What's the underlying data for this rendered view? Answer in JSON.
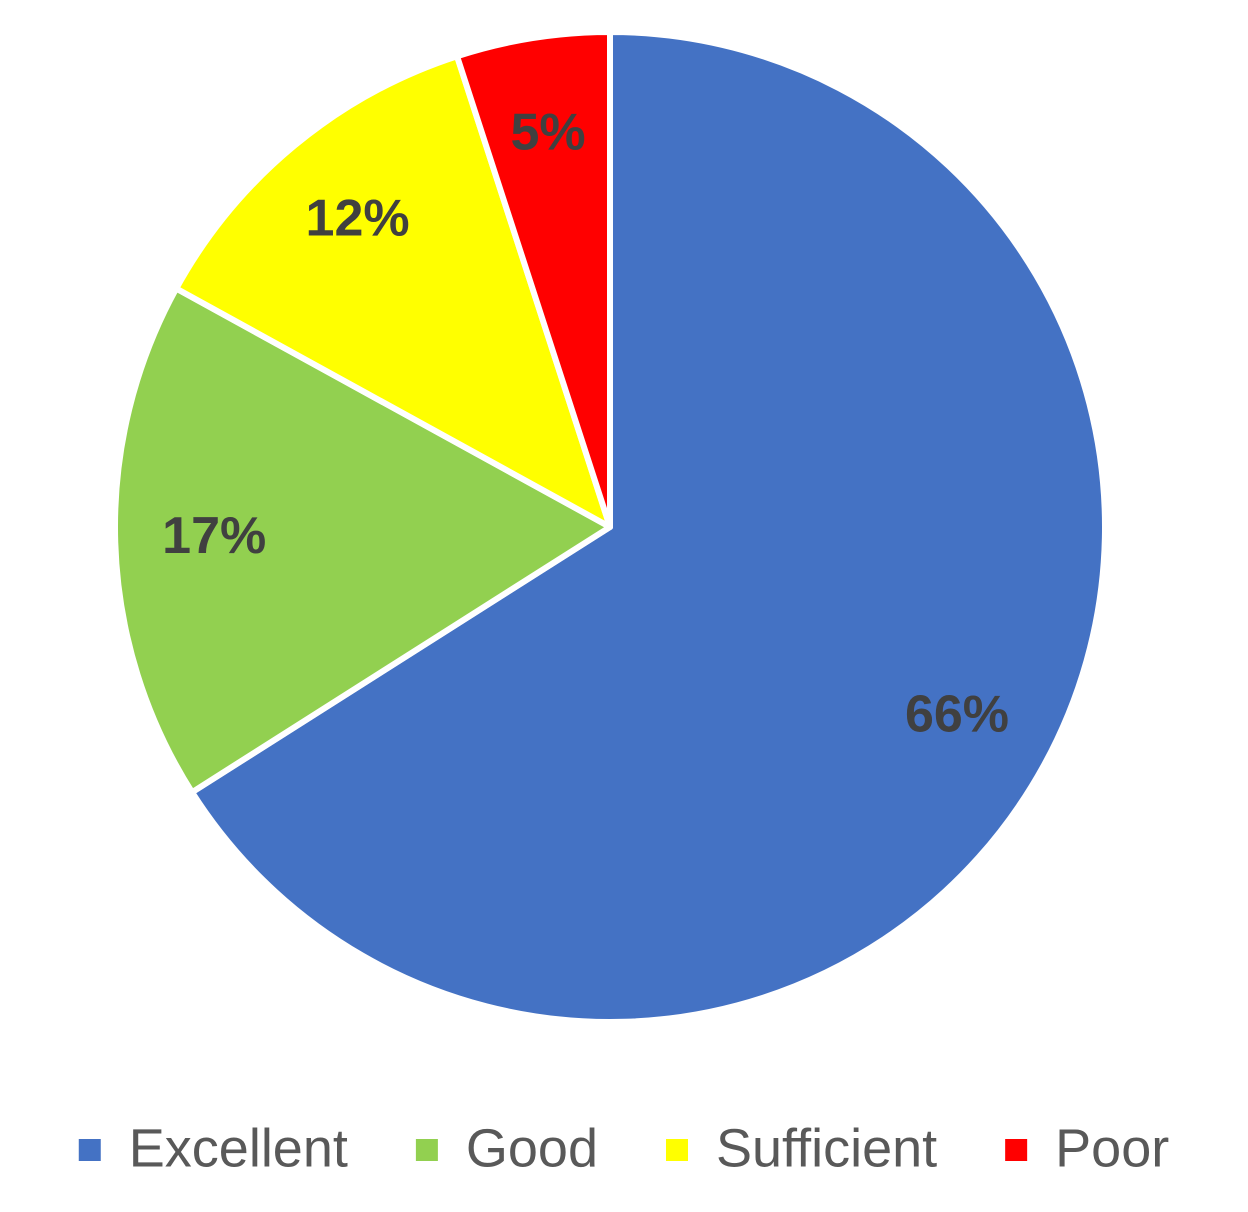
{
  "chart_data": {
    "type": "pie",
    "categories": [
      "Excellent",
      "Good",
      "Sufficient",
      "Poor"
    ],
    "values": [
      66,
      17,
      12,
      5
    ],
    "value_labels": [
      "66%",
      "17%",
      "12%",
      "5%"
    ],
    "colors": [
      "#4472c4",
      "#92d050",
      "#ffff00",
      "#ff0000"
    ],
    "legend": "bottom"
  }
}
